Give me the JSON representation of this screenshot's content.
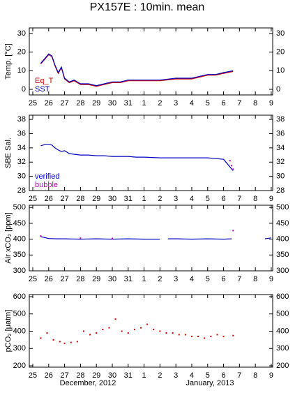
{
  "title": "PX157E : 10min. mean",
  "month_labels": [
    "December, 2012",
    "January, 2013"
  ],
  "chart_data": [
    {
      "type": "line",
      "ylabel": "Temp. [°C]",
      "xlim": [
        -0.22,
        15.09
      ],
      "ylim": [
        -3,
        33
      ],
      "yticks": [
        0,
        10,
        20,
        30
      ],
      "xticks": [
        {
          "value": 0,
          "label": "25"
        },
        {
          "value": 1,
          "label": "26"
        },
        {
          "value": 2,
          "label": "27"
        },
        {
          "value": 3,
          "label": "28"
        },
        {
          "value": 4,
          "label": "29"
        },
        {
          "value": 5,
          "label": "30"
        },
        {
          "value": 6,
          "label": "31"
        },
        {
          "value": 7,
          "label": "1"
        },
        {
          "value": 8,
          "label": "2"
        },
        {
          "value": 9,
          "label": "3"
        },
        {
          "value": 10,
          "label": "4"
        },
        {
          "value": 11,
          "label": "5"
        },
        {
          "value": 12,
          "label": "6"
        },
        {
          "value": 13,
          "label": "7"
        },
        {
          "value": 14,
          "label": "8"
        },
        {
          "value": 15,
          "label": "9"
        }
      ],
      "series": [
        {
          "name": "Eq_T",
          "color": "#d00000",
          "x": [
            0.5,
            0.8,
            1.0,
            1.2,
            1.4,
            1.6,
            1.8,
            2.0,
            2.3,
            2.6,
            3,
            3.5,
            4,
            4.5,
            5,
            5.5,
            6,
            6.5,
            7,
            8,
            9,
            10,
            10.5,
            11,
            11.5,
            12,
            12.6
          ],
          "values": [
            13.6,
            16.6,
            18.6,
            17.6,
            12.6,
            8.6,
            11.6,
            5.6,
            3.6,
            4.6,
            2.6,
            2.6,
            1.6,
            2.6,
            3.6,
            3.6,
            4.6,
            4.6,
            4.6,
            4.6,
            5.6,
            5.6,
            6.6,
            7.6,
            7.6,
            8.6,
            9.6
          ]
        },
        {
          "name": "SST",
          "color": "#0000c0",
          "x": [
            0.5,
            0.8,
            1.0,
            1.2,
            1.4,
            1.6,
            1.8,
            2.0,
            2.3,
            2.6,
            3,
            3.5,
            4,
            4.5,
            5,
            5.5,
            6,
            6.5,
            7,
            8,
            9,
            10,
            10.5,
            11,
            11.5,
            12,
            12.6
          ],
          "values": [
            14,
            17,
            19,
            18,
            13,
            9,
            12,
            6,
            4,
            5,
            3,
            3,
            2,
            3,
            4,
            4,
            5,
            5,
            5,
            5,
            6,
            6,
            7,
            8,
            8,
            9,
            10
          ]
        }
      ]
    },
    {
      "type": "line",
      "ylabel": "SBE Sal.",
      "xlim": [
        -0.22,
        15.09
      ],
      "ylim": [
        28,
        38.6
      ],
      "yticks": [
        28,
        30,
        32,
        34,
        36,
        38
      ],
      "xticks": [
        {
          "value": 0,
          "label": "25"
        },
        {
          "value": 1,
          "label": "26"
        },
        {
          "value": 2,
          "label": "27"
        },
        {
          "value": 3,
          "label": "28"
        },
        {
          "value": 4,
          "label": "29"
        },
        {
          "value": 5,
          "label": "30"
        },
        {
          "value": 6,
          "label": "31"
        },
        {
          "value": 7,
          "label": "1"
        },
        {
          "value": 8,
          "label": "2"
        },
        {
          "value": 9,
          "label": "3"
        },
        {
          "value": 10,
          "label": "4"
        },
        {
          "value": 11,
          "label": "5"
        },
        {
          "value": 12,
          "label": "6"
        },
        {
          "value": 13,
          "label": "7"
        },
        {
          "value": 14,
          "label": "8"
        },
        {
          "value": 15,
          "label": "9"
        }
      ],
      "series": [
        {
          "name": "verified",
          "color": "#0000c0",
          "x": [
            0.5,
            0.8,
            1.0,
            1.2,
            1.4,
            1.6,
            1.8,
            2.0,
            2.3,
            2.6,
            3,
            3.5,
            4,
            4.5,
            5,
            5.5,
            6,
            6.5,
            7,
            8,
            9,
            10,
            10.5,
            11,
            11.5,
            12,
            12.6
          ],
          "values": [
            34.3,
            34.5,
            34.5,
            34.4,
            34,
            33.7,
            33.5,
            33.6,
            33.2,
            33.1,
            33,
            33,
            32.9,
            32.9,
            32.8,
            32.8,
            32.8,
            32.7,
            32.7,
            32.6,
            32.6,
            32.6,
            32.6,
            32.6,
            32.5,
            32.4,
            30.8
          ]
        },
        {
          "name": "bubble",
          "color": "#c000c0",
          "marker": true,
          "x": [
            12.4,
            12.5,
            12.6
          ],
          "values": [
            32.2,
            31.5,
            31
          ]
        }
      ]
    },
    {
      "type": "line",
      "ylabel": "Air xCO₂ [ppm]",
      "xlim": [
        -0.22,
        15.09
      ],
      "ylim": [
        300,
        507
      ],
      "yticks": [
        300,
        350,
        400,
        450,
        500
      ],
      "xticks": [
        {
          "value": 0,
          "label": "25"
        },
        {
          "value": 1,
          "label": "26"
        },
        {
          "value": 2,
          "label": "27"
        },
        {
          "value": 3,
          "label": "28"
        },
        {
          "value": 4,
          "label": "29"
        },
        {
          "value": 5,
          "label": "30"
        },
        {
          "value": 6,
          "label": "31"
        },
        {
          "value": 7,
          "label": "1"
        },
        {
          "value": 8,
          "label": "2"
        },
        {
          "value": 9,
          "label": "3"
        },
        {
          "value": 10,
          "label": "4"
        },
        {
          "value": 11,
          "label": "5"
        },
        {
          "value": 12,
          "label": "6"
        },
        {
          "value": 13,
          "label": "7"
        },
        {
          "value": 14,
          "label": "8"
        },
        {
          "value": 15,
          "label": "9"
        }
      ],
      "series": [
        {
          "name": "verified",
          "color": "#0000c0",
          "x": [
            0.5,
            1,
            1.5,
            2,
            3,
            4,
            5,
            6,
            7,
            8,
            8.3,
            8.5,
            9,
            10,
            11,
            12,
            12.5,
            13.5,
            14.6,
            15
          ],
          "values": [
            408,
            402,
            401,
            401,
            400,
            401,
            400,
            401,
            400,
            400,
            null,
            401,
            401,
            400,
            401,
            400,
            401,
            null,
            401,
            404
          ]
        },
        {
          "name": "bubble",
          "color": "#c000c0",
          "marker": true,
          "x": [
            0.5,
            3,
            5,
            12.6
          ],
          "values": [
            410,
            403,
            402,
            427
          ]
        }
      ]
    },
    {
      "type": "scatter",
      "ylabel": "pCO₂ [μatm]",
      "xlim": [
        -0.22,
        15.09
      ],
      "ylim": [
        192,
        612
      ],
      "yticks": [
        200,
        300,
        400,
        500,
        600
      ],
      "xticks": [
        {
          "value": 0,
          "label": "25"
        },
        {
          "value": 1,
          "label": "26"
        },
        {
          "value": 2,
          "label": "27"
        },
        {
          "value": 3,
          "label": "28"
        },
        {
          "value": 4,
          "label": "29"
        },
        {
          "value": 5,
          "label": "30"
        },
        {
          "value": 6,
          "label": "31"
        },
        {
          "value": 7,
          "label": "1"
        },
        {
          "value": 8,
          "label": "2"
        },
        {
          "value": 9,
          "label": "3"
        },
        {
          "value": 10,
          "label": "4"
        },
        {
          "value": 11,
          "label": "5"
        },
        {
          "value": 12,
          "label": "6"
        },
        {
          "value": 13,
          "label": "7"
        },
        {
          "value": 14,
          "label": "8"
        },
        {
          "value": 15,
          "label": "9"
        }
      ],
      "series": [
        {
          "color": "#d00000",
          "x": [
            0.5,
            0.9,
            1.3,
            1.7,
            2.0,
            2.4,
            2.8,
            3.2,
            3.6,
            4.0,
            4.4,
            4.8,
            5.2,
            5.6,
            6.0,
            6.4,
            6.8,
            7.2,
            7.6,
            8.0,
            8.4,
            8.8,
            9.2,
            9.6,
            10.0,
            10.4,
            10.8,
            11.2,
            11.6,
            12.0,
            12.6
          ],
          "values": [
            360,
            390,
            350,
            340,
            330,
            335,
            340,
            400,
            380,
            390,
            410,
            420,
            470,
            400,
            390,
            410,
            420,
            440,
            410,
            400,
            390,
            390,
            380,
            380,
            370,
            370,
            360,
            370,
            380,
            370,
            375
          ]
        }
      ]
    }
  ]
}
